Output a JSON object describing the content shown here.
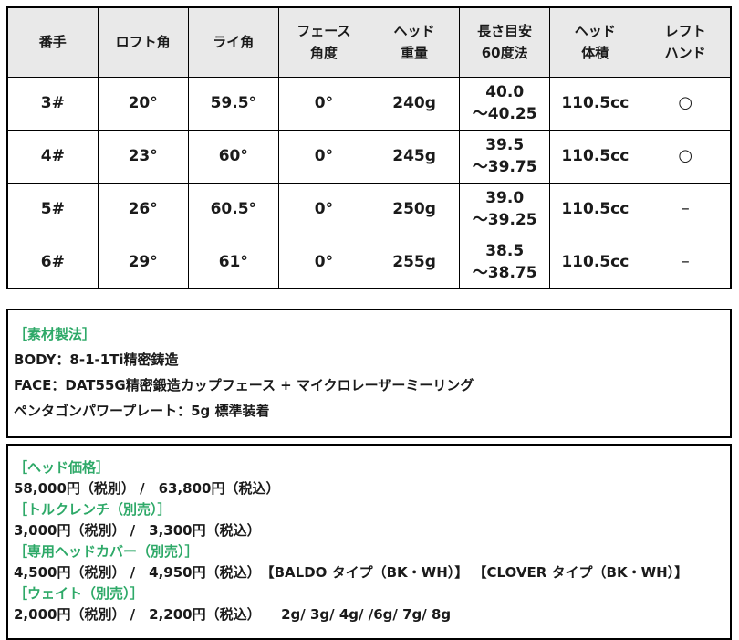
{
  "colors": {
    "accent_green": "#2ea968",
    "header_bg": "#e9e9e9",
    "border": "#000000",
    "text": "#1a1a1a"
  },
  "spec_table": {
    "headers": [
      "番手",
      "ロフト角",
      "ライ角",
      "フェース\n角度",
      "ヘッド\n重量",
      "長さ目安\n60度法",
      "ヘッド\n体積",
      "レフト\nハンド"
    ],
    "rows": [
      [
        "3#",
        "20°",
        "59.5°",
        "0°",
        "240g",
        "40.0\n～40.25",
        "110.5cc",
        "○"
      ],
      [
        "4#",
        "23°",
        "60°",
        "0°",
        "245g",
        "39.5\n～39.75",
        "110.5cc",
        "○"
      ],
      [
        "5#",
        "26°",
        "60.5°",
        "0°",
        "250g",
        "39.0\n～39.25",
        "110.5cc",
        "–"
      ],
      [
        "6#",
        "29°",
        "61°",
        "0°",
        "255g",
        "38.5\n～38.75",
        "110.5cc",
        "–"
      ]
    ]
  },
  "materials": {
    "heading": "［素材製法］",
    "lines": [
      "BODY：8-1-1Ti精密鋳造",
      "FACE：DAT55G精密鍛造カップフェース + マイクロレーザーミーリング",
      "ペンタゴンパワープレート：5g 標準装着"
    ]
  },
  "pricing": {
    "items": [
      {
        "label": "［ヘッド価格］",
        "value": "58,000円（税別） /　63,800円（税込）"
      },
      {
        "label": "［トルクレンチ（別売）］",
        "value": "3,000円（税別） /　3,300円（税込）"
      },
      {
        "label": "［専用ヘッドカバー（別売）］",
        "value": "4,500円（税別） /　4,950円（税込）　【BALDO タイプ（BK・WH）】 【CLOVER タイプ（BK・WH）】"
      },
      {
        "label": "［ウェイト（別売）］",
        "value": "2,000円（税別） /　2,200円（税込）　　2g/ 3g/ 4g/ /6g/ 7g/ 8g"
      }
    ]
  }
}
